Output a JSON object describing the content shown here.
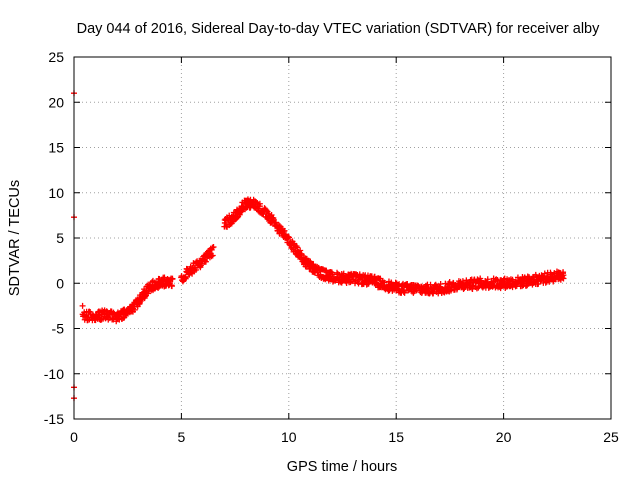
{
  "chart_data": {
    "type": "scatter",
    "title": "Day 044 of 2016, Sidereal Day-to-day VTEC variation (SDTVAR) for receiver alby",
    "xlabel": "GPS time / hours",
    "ylabel": "SDTVAR / TECUs",
    "xlim": [
      0,
      25
    ],
    "ylim": [
      -15,
      25
    ],
    "xticks": [
      "0",
      "5",
      "10",
      "15",
      "20",
      "25"
    ],
    "yticks": [
      "-15",
      "-10",
      "-5",
      "0",
      "5",
      "10",
      "15",
      "20",
      "25"
    ],
    "grid": true,
    "marker": "+",
    "series_color": "#ff0000",
    "series": [
      {
        "name": "SDTVAR",
        "trend": [
          [
            0.4,
            -3.5
          ],
          [
            1.0,
            -3.6
          ],
          [
            1.5,
            -3.5
          ],
          [
            2.0,
            -3.8
          ],
          [
            2.5,
            -3.2
          ],
          [
            3.0,
            -2.0
          ],
          [
            3.4,
            -0.8
          ],
          [
            3.8,
            0.0
          ],
          [
            4.2,
            0.1
          ],
          [
            4.6,
            0.2
          ],
          [
            5.0,
            0.6
          ],
          [
            5.5,
            1.6
          ],
          [
            6.0,
            2.5
          ],
          [
            6.5,
            3.6
          ],
          [
            7.0,
            6.5
          ],
          [
            7.5,
            7.5
          ],
          [
            7.9,
            8.6
          ],
          [
            8.3,
            9.0
          ],
          [
            8.8,
            8.0
          ],
          [
            9.3,
            6.7
          ],
          [
            9.8,
            5.4
          ],
          [
            10.3,
            3.8
          ],
          [
            10.8,
            2.3
          ],
          [
            11.2,
            1.5
          ],
          [
            11.6,
            1.0
          ],
          [
            12.0,
            0.7
          ],
          [
            12.5,
            0.6
          ],
          [
            13.0,
            0.5
          ],
          [
            13.5,
            0.4
          ],
          [
            14.0,
            0.2
          ],
          [
            14.5,
            -0.2
          ],
          [
            15.0,
            -0.5
          ],
          [
            15.5,
            -0.6
          ],
          [
            16.0,
            -0.6
          ],
          [
            16.5,
            -0.7
          ],
          [
            17.0,
            -0.6
          ],
          [
            17.5,
            -0.4
          ],
          [
            18.0,
            -0.1
          ],
          [
            18.5,
            -0.1
          ],
          [
            19.0,
            0.0
          ],
          [
            19.5,
            0.0
          ],
          [
            20.0,
            0.0
          ],
          [
            20.5,
            0.1
          ],
          [
            21.0,
            0.2
          ],
          [
            21.5,
            0.4
          ],
          [
            22.0,
            0.6
          ],
          [
            22.5,
            0.8
          ],
          [
            22.8,
            1.0
          ]
        ],
        "outliers": [
          [
            0.0,
            21.0
          ],
          [
            0.0,
            7.3
          ],
          [
            0.0,
            -11.5
          ],
          [
            0.0,
            -12.7
          ],
          [
            0.4,
            -2.5
          ]
        ]
      }
    ]
  }
}
